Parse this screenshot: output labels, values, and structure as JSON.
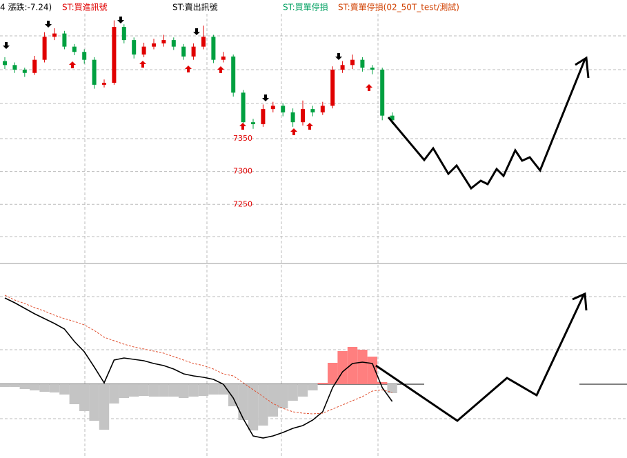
{
  "header": [
    {
      "text": "4 漲跌:-7.24)",
      "color": "#000000"
    },
    {
      "text": "ST:買進訊號",
      "color": "#e00000"
    },
    {
      "text": "ST:賣出訊號",
      "color": "#000000"
    },
    {
      "text": "ST:買單停損",
      "color": "#00a060"
    },
    {
      "text": "ST:賣單停損(02_50T_test/測試)",
      "color": "#d04000"
    }
  ],
  "chart_data": [
    {
      "type": "candlestick",
      "open": [
        7468,
        7462,
        7455,
        7450,
        7470,
        7505,
        7510,
        7490,
        7482,
        7470,
        7432,
        7435,
        7520,
        7500,
        7478,
        7490,
        7495,
        7500,
        7490,
        7475,
        7490,
        7505,
        7470,
        7475,
        7420,
        7375,
        7372,
        7395,
        7400,
        7390,
        7375,
        7395,
        7390,
        7400,
        7455,
        7462,
        7470,
        7458,
        7455,
        7385
      ],
      "high": [
        7474,
        7466,
        7458,
        7476,
        7512,
        7518,
        7514,
        7494,
        7486,
        7474,
        7440,
        7530,
        7524,
        7504,
        7496,
        7502,
        7508,
        7504,
        7494,
        7495,
        7522,
        7508,
        7482,
        7478,
        7424,
        7380,
        7402,
        7406,
        7404,
        7396,
        7408,
        7400,
        7406,
        7460,
        7468,
        7478,
        7474,
        7462,
        7458,
        7390
      ],
      "low": [
        7456,
        7450,
        7444,
        7447,
        7466,
        7500,
        7486,
        7477,
        7464,
        7426,
        7428,
        7432,
        7495,
        7472,
        7474,
        7486,
        7490,
        7485,
        7470,
        7470,
        7486,
        7465,
        7466,
        7414,
        7368,
        7365,
        7368,
        7390,
        7384,
        7368,
        7370,
        7384,
        7386,
        7396,
        7450,
        7456,
        7452,
        7448,
        7378,
        7372
      ],
      "close": [
        7462,
        7455,
        7450,
        7470,
        7505,
        7510,
        7490,
        7482,
        7470,
        7432,
        7435,
        7520,
        7500,
        7478,
        7490,
        7495,
        7500,
        7490,
        7475,
        7490,
        7505,
        7470,
        7475,
        7420,
        7375,
        7372,
        7395,
        7400,
        7390,
        7375,
        7395,
        7390,
        7400,
        7455,
        7462,
        7470,
        7458,
        7455,
        7385,
        7378
      ],
      "up_color": "#e00000",
      "down_color": "#00a040",
      "ylim": [
        7160,
        7540
      ],
      "yticks": [
        7350,
        7300,
        7250
      ],
      "tick_color": "#e00000",
      "grid": true
    },
    {
      "type": "macd",
      "series": [
        {
          "color": "#000000",
          "style": "solid",
          "values": [
            125,
            118,
            110,
            102,
            95,
            88,
            80,
            62,
            47,
            25,
            2,
            35,
            38,
            36,
            34,
            30,
            27,
            22,
            15,
            12,
            10,
            7,
            0,
            -20,
            -50,
            -75,
            -78,
            -75,
            -70,
            -64,
            -60,
            -52,
            -40,
            -5,
            18,
            30,
            32,
            30,
            -5,
            -25
          ]
        },
        {
          "color": "#e05030",
          "style": "dashed",
          "values": [
            129,
            122,
            117,
            111,
            106,
            100,
            95,
            91,
            86,
            78,
            68,
            63,
            58,
            54,
            51,
            48,
            45,
            40,
            35,
            30,
            27,
            22,
            15,
            12,
            2,
            -8,
            -18,
            -28,
            -35,
            -40,
            -42,
            -43,
            -42,
            -36,
            -30,
            -24,
            -18,
            -10,
            -8,
            -12
          ]
        }
      ],
      "histogram": {
        "values": [
          -4,
          -4,
          -7,
          -9,
          -11,
          -12,
          -15,
          -29,
          -39,
          -53,
          -66,
          -28,
          -20,
          -18,
          -17,
          -18,
          -18,
          -18,
          -20,
          -18,
          -17,
          -15,
          -15,
          -32,
          -52,
          -67,
          -60,
          -47,
          -35,
          -24,
          -18,
          -9,
          2,
          31,
          48,
          54,
          50,
          40,
          3,
          -13
        ],
        "up_color": "#ff7f7f",
        "down_color": "#c4c4c4"
      },
      "ylim": [
        -100,
        175
      ]
    }
  ]
}
